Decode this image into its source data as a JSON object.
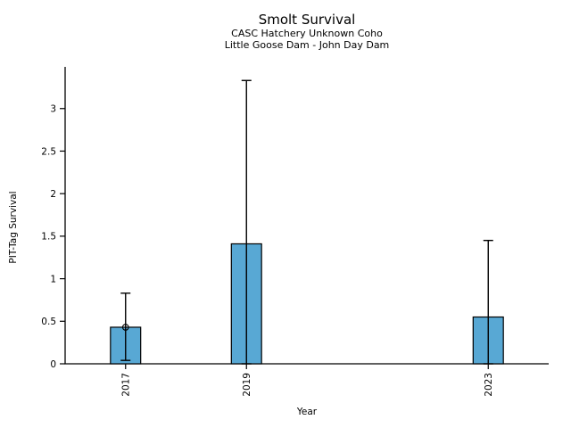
{
  "chart_data": {
    "type": "bar",
    "title": "Smolt Survival",
    "subtitle": [
      "CASC Hatchery Unknown Coho",
      "Little Goose Dam - John Day Dam"
    ],
    "xlabel": "Year",
    "ylabel": "PIT-Tag Survival",
    "categories": [
      2017,
      2019,
      2023
    ],
    "values": [
      0.43,
      1.41,
      0.55
    ],
    "error_low": [
      0.04,
      0,
      0
    ],
    "error_high": [
      0.83,
      3.33,
      1.45
    ],
    "marker_on": [
      true,
      false,
      false
    ],
    "yticks": [
      0,
      0.5,
      1,
      1.5,
      2,
      2.5,
      3
    ],
    "ylim": [
      0,
      3.49
    ],
    "xlim": [
      2016,
      2024
    ],
    "bar_width_years": 0.5,
    "bar_color": "#58A8D4",
    "edge_color": "#000000",
    "errorbar_color": "#000000",
    "grid": false,
    "legend": null
  }
}
